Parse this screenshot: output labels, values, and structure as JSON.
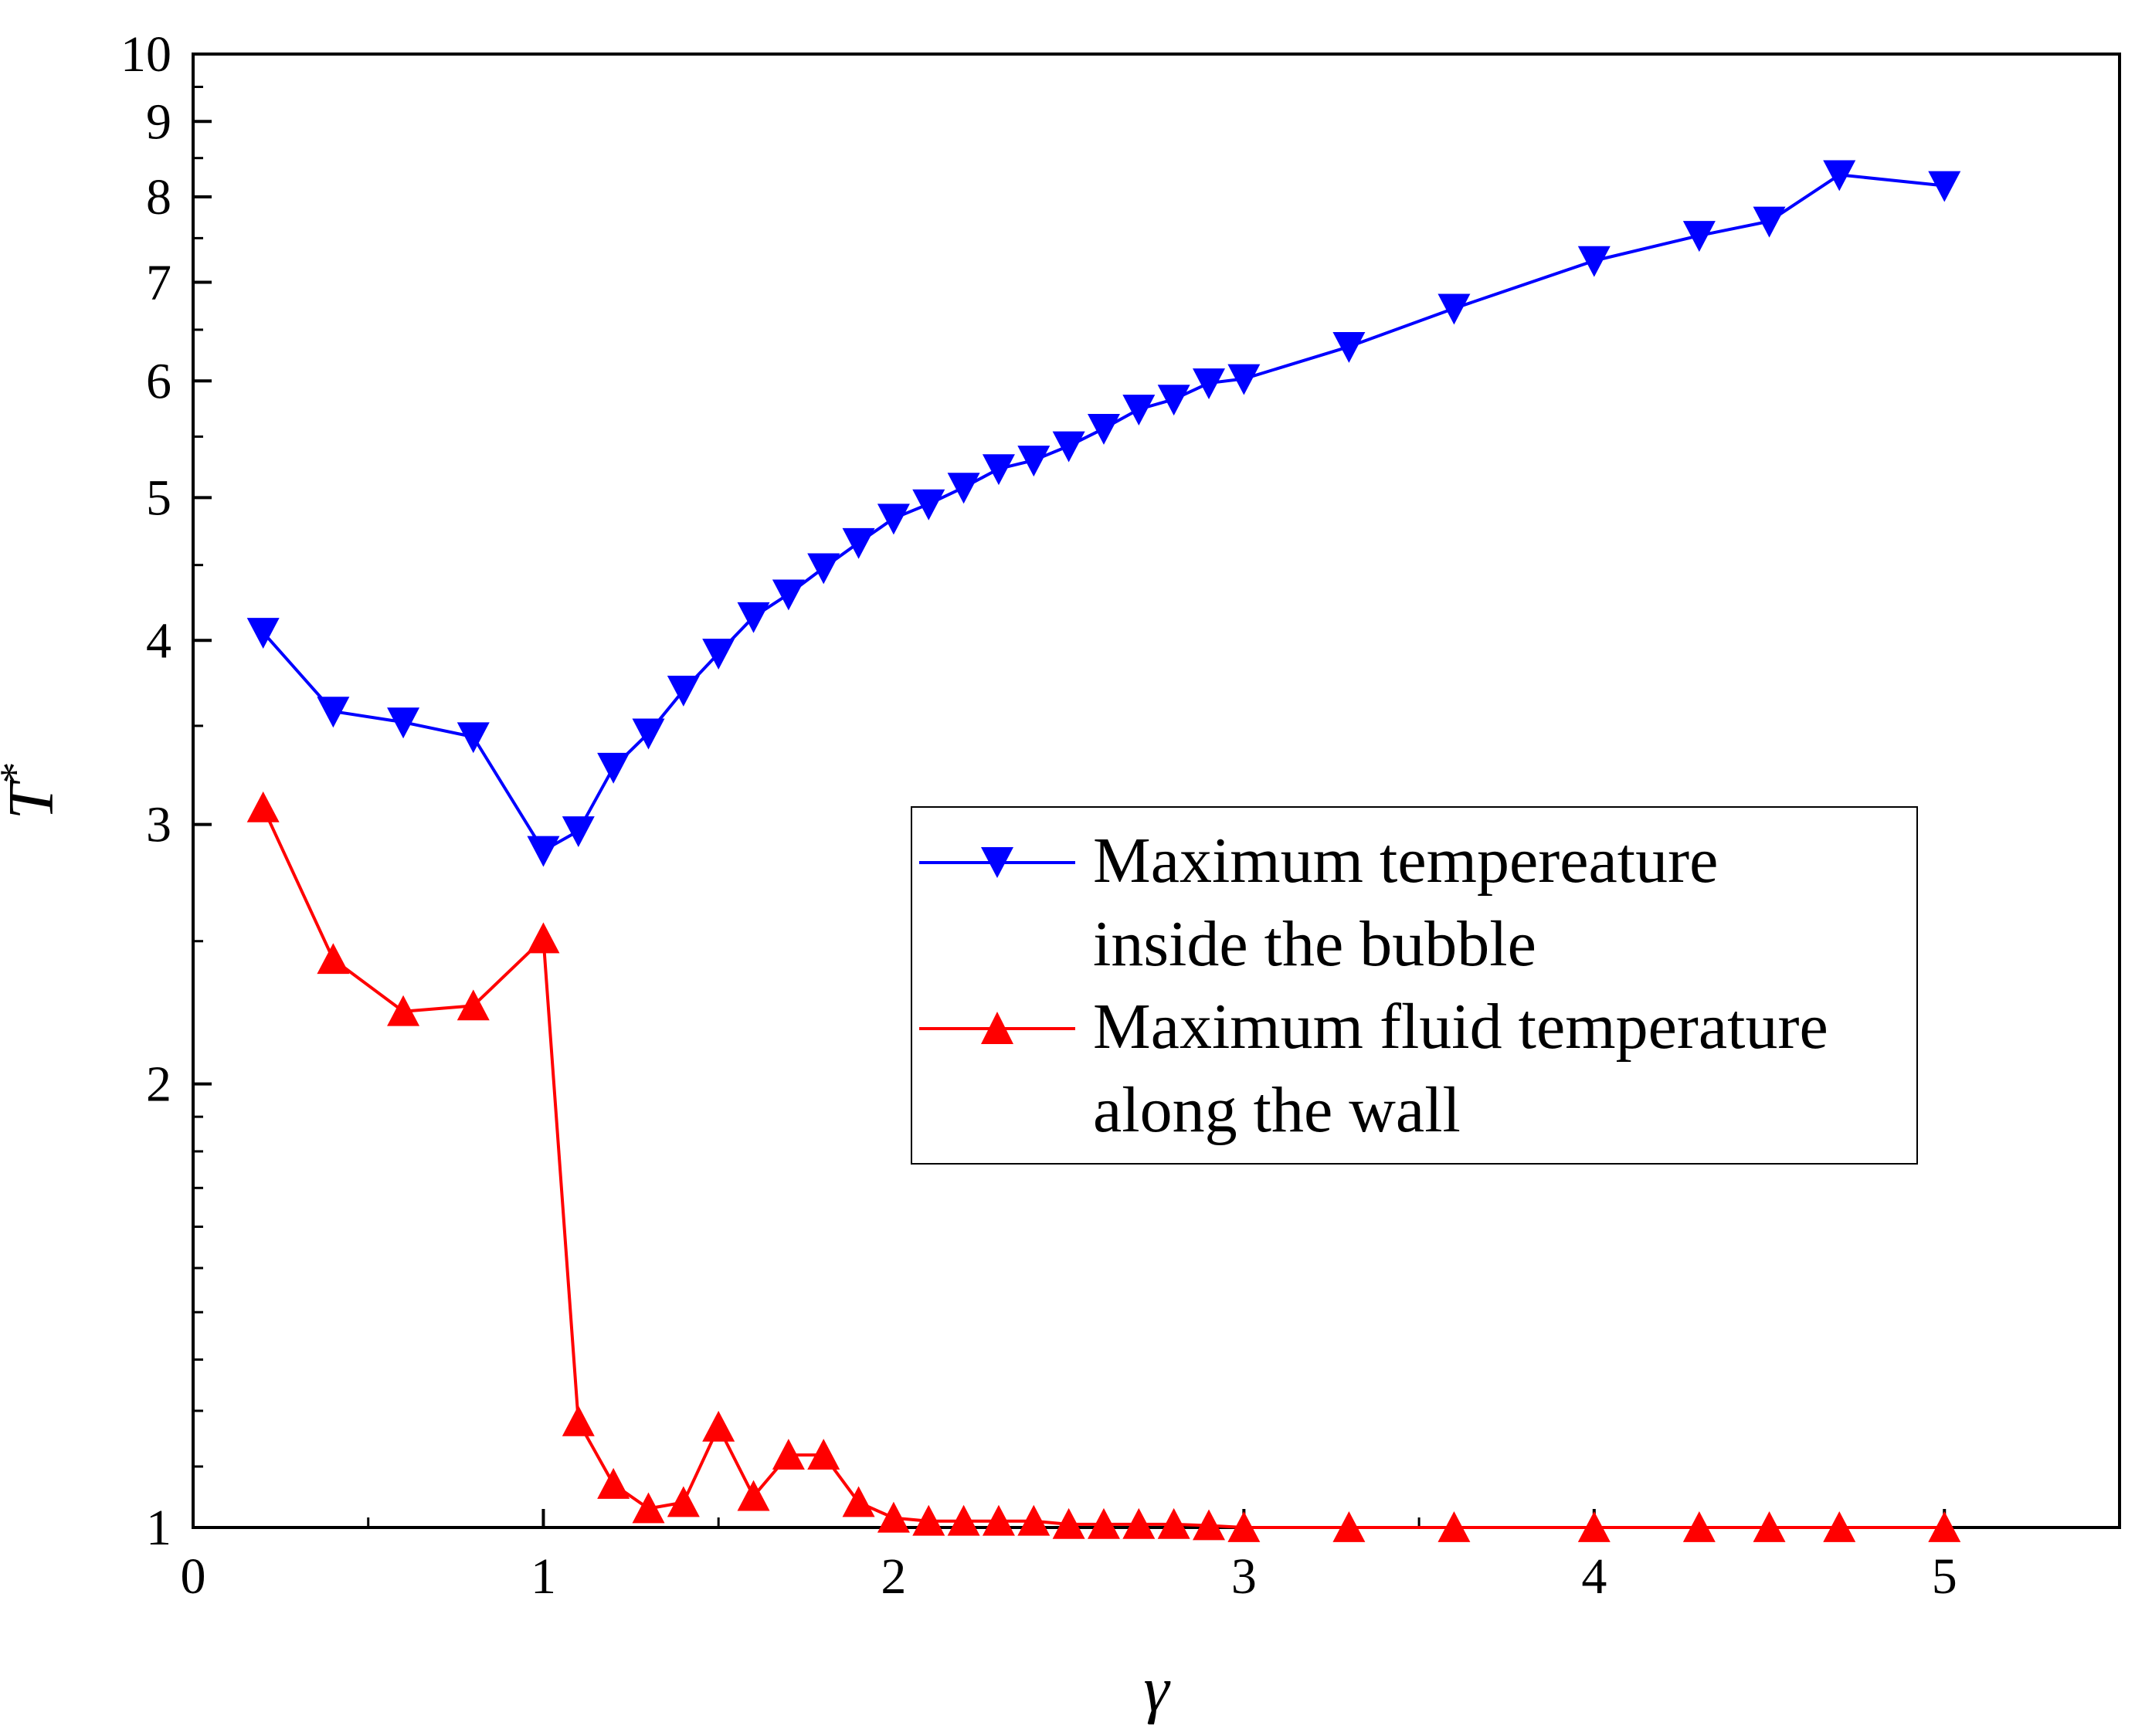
{
  "chart_data": {
    "type": "line",
    "title": "",
    "xlabel": "γ",
    "ylabel": "T",
    "ylabel_superscript": "*",
    "xlim": [
      0,
      5.5
    ],
    "ylim": [
      1,
      10
    ],
    "yscale": "log",
    "xticks": [
      "0",
      "1",
      "2",
      "3",
      "4",
      "5"
    ],
    "yticks": [
      "1",
      "2",
      "3",
      "4",
      "5",
      "6",
      "7",
      "8",
      "9",
      "10"
    ],
    "legend_position": "center-right",
    "series": [
      {
        "name": "Maximum tempereature inside the bubble",
        "legend_lines": [
          "Maximum tempereature",
          "inside the bubble"
        ],
        "color": "#0000ff",
        "marker": "triangle-down",
        "x": [
          0.2,
          0.4,
          0.6,
          0.8,
          1.0,
          1.1,
          1.2,
          1.3,
          1.4,
          1.5,
          1.6,
          1.7,
          1.8,
          1.9,
          2.0,
          2.1,
          2.2,
          2.3,
          2.4,
          2.5,
          2.6,
          2.7,
          2.8,
          2.9,
          3.0,
          3.3,
          3.6,
          4.0,
          4.3,
          4.5,
          4.7,
          5.0
        ],
        "y": [
          4.05,
          3.58,
          3.52,
          3.44,
          2.88,
          2.97,
          3.28,
          3.46,
          3.7,
          3.92,
          4.15,
          4.3,
          4.48,
          4.66,
          4.84,
          4.95,
          5.08,
          5.23,
          5.3,
          5.42,
          5.57,
          5.74,
          5.83,
          5.98,
          6.02,
          6.33,
          6.72,
          7.24,
          7.53,
          7.7,
          8.28,
          8.14
        ]
      },
      {
        "name": "Maximum fluid temperature along the wall",
        "legend_lines": [
          "Maximum fluid temperature",
          "along the wall"
        ],
        "color": "#ff0000",
        "marker": "triangle-up",
        "x": [
          0.2,
          0.4,
          0.6,
          0.8,
          1.0,
          1.1,
          1.2,
          1.3,
          1.4,
          1.5,
          1.6,
          1.7,
          1.8,
          1.9,
          2.0,
          2.1,
          2.2,
          2.3,
          2.4,
          2.5,
          2.6,
          2.7,
          2.8,
          2.9,
          3.0,
          3.3,
          3.6,
          4.0,
          4.3,
          4.5,
          4.7,
          5.0
        ],
        "y": [
          3.08,
          2.43,
          2.24,
          2.26,
          2.51,
          1.18,
          1.07,
          1.03,
          1.04,
          1.17,
          1.05,
          1.12,
          1.12,
          1.04,
          1.015,
          1.01,
          1.01,
          1.01,
          1.01,
          1.005,
          1.005,
          1.005,
          1.005,
          1.003,
          1.0,
          1.0,
          1.0,
          1.0,
          1.0,
          1.0,
          1.0,
          1.0
        ]
      }
    ]
  }
}
